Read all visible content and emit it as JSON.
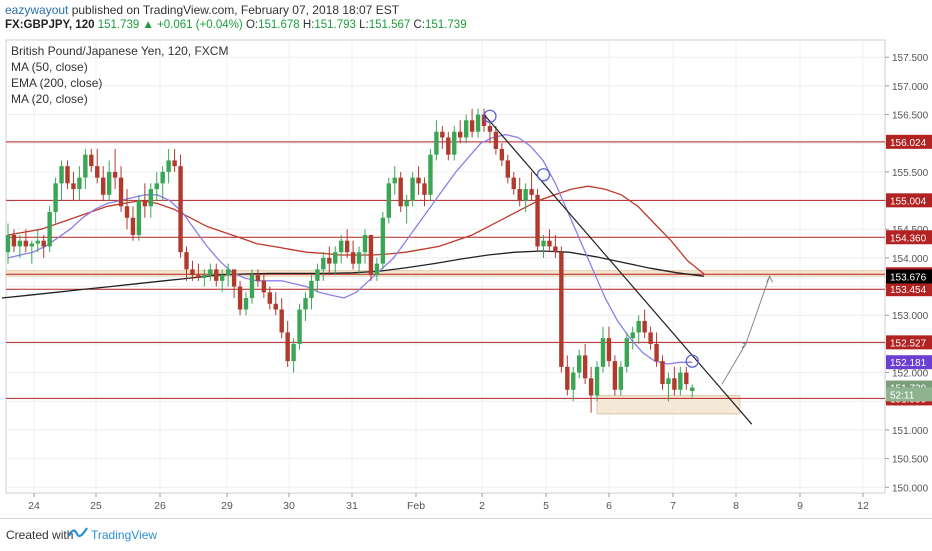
{
  "header": {
    "user": "eazywayout",
    "published_text": " published on TradingView.com, February 07, 2018 18:07 EST",
    "symbol": "FX:GBPJPY, 120",
    "last": "151.739",
    "change": "+0.061 (+0.04%)",
    "o_label": "O:",
    "o_value": "151.678",
    "h_label": "H:",
    "h_value": "151.793",
    "l_label": "L:",
    "l_value": "151.567",
    "c_label": "C:",
    "c_value": "151.739"
  },
  "legend": {
    "title": "British Pound/Japanese Yen, 120, FXCM",
    "items": [
      "MA (50, close)",
      "EMA (200, close)",
      "MA (20, close)"
    ]
  },
  "footer": {
    "created_with": "Created with",
    "brand": "TradingView"
  },
  "chart_data": {
    "type": "candlestick",
    "y_axis": {
      "min": 149.9,
      "max": 157.8,
      "side": "right",
      "ticks": [
        150.0,
        150.5,
        151.0,
        151.5,
        152.0,
        152.5,
        153.0,
        153.5,
        154.0,
        154.5,
        155.0,
        155.5,
        156.0,
        156.5,
        157.0,
        157.5
      ],
      "tick_labels": [
        "150.000",
        "150.500",
        "151.000",
        "151.500",
        "152.000",
        "152.500",
        "153.000",
        "153.500",
        "154.000",
        "154.500",
        "155.000",
        "155.500",
        "156.000",
        "156.500",
        "157.000",
        "157.500"
      ]
    },
    "x_axis": {
      "labels": [
        "24",
        "25",
        "26",
        "29",
        "30",
        "31",
        "Feb",
        "2",
        "5",
        "6",
        "7",
        "8",
        "9",
        "12"
      ]
    },
    "grid": true,
    "horizontal_levels": [
      {
        "value": 156.024,
        "label": "156.024",
        "color": "#b22222"
      },
      {
        "value": 155.004,
        "label": "155.004",
        "color": "#b22222"
      },
      {
        "value": 154.36,
        "label": "154.360",
        "color": "#b22222"
      },
      {
        "value": 153.715,
        "label": "153.715",
        "color": "#b22222"
      },
      {
        "value": 153.454,
        "label": "153.454",
        "color": "#b22222"
      },
      {
        "value": 152.527,
        "label": "152.527",
        "color": "#b22222"
      },
      {
        "value": 151.55,
        "label": "151.550",
        "color": "#b22222"
      }
    ],
    "price_tags": [
      {
        "value": 153.676,
        "label": "153.676",
        "color": "#000000"
      },
      {
        "value": 152.181,
        "label": "152.181",
        "color": "#6a3fd1"
      },
      {
        "value": 151.739,
        "label": "151.739",
        "color": "#7a9e7a"
      },
      {
        "value": 151.62,
        "label": "52:11",
        "color": "#8fb38f"
      }
    ],
    "zones": [
      {
        "y1": 153.68,
        "y2": 153.78
      },
      {
        "y1": 151.28,
        "y2": 151.6
      }
    ],
    "ohlc": [
      [
        154.1,
        154.6,
        153.9,
        154.4
      ],
      [
        154.4,
        154.5,
        154.1,
        154.2
      ],
      [
        154.2,
        154.4,
        154.0,
        154.3
      ],
      [
        154.3,
        154.5,
        154.1,
        154.2
      ],
      [
        154.2,
        154.3,
        153.9,
        154.25
      ],
      [
        154.25,
        154.5,
        154.1,
        154.3
      ],
      [
        154.3,
        154.4,
        154.0,
        154.2
      ],
      [
        154.2,
        154.9,
        154.1,
        154.8
      ],
      [
        154.8,
        155.4,
        154.6,
        155.3
      ],
      [
        155.3,
        155.7,
        155.0,
        155.6
      ],
      [
        155.6,
        155.7,
        155.2,
        155.3
      ],
      [
        155.3,
        155.5,
        155.0,
        155.2
      ],
      [
        155.2,
        155.6,
        155.0,
        155.4
      ],
      [
        155.4,
        155.9,
        155.2,
        155.8
      ],
      [
        155.8,
        155.9,
        155.5,
        155.6
      ],
      [
        155.6,
        155.9,
        155.3,
        155.4
      ],
      [
        155.4,
        155.6,
        155.0,
        155.1
      ],
      [
        155.1,
        155.7,
        155.0,
        155.5
      ],
      [
        155.5,
        155.9,
        155.2,
        155.4
      ],
      [
        155.4,
        155.6,
        154.8,
        154.9
      ],
      [
        154.9,
        155.2,
        154.5,
        154.7
      ],
      [
        154.7,
        154.9,
        154.3,
        154.4
      ],
      [
        154.4,
        155.1,
        154.3,
        155.0
      ],
      [
        155.0,
        155.3,
        154.7,
        154.9
      ],
      [
        154.9,
        155.3,
        154.7,
        155.2
      ],
      [
        155.2,
        155.5,
        155.0,
        155.3
      ],
      [
        155.3,
        155.6,
        155.0,
        155.5
      ],
      [
        155.5,
        155.9,
        155.3,
        155.7
      ],
      [
        155.7,
        155.9,
        155.5,
        155.6
      ],
      [
        155.6,
        155.8,
        154.0,
        154.1
      ],
      [
        154.1,
        154.2,
        153.6,
        153.8
      ],
      [
        153.8,
        153.95,
        153.6,
        153.7
      ],
      [
        153.7,
        153.9,
        153.6,
        153.65
      ],
      [
        153.65,
        153.8,
        153.5,
        153.7
      ],
      [
        153.7,
        153.9,
        153.6,
        153.8
      ],
      [
        153.8,
        153.9,
        153.5,
        153.6
      ],
      [
        153.6,
        153.8,
        153.4,
        153.7
      ],
      [
        153.7,
        153.9,
        153.5,
        153.8
      ],
      [
        153.8,
        153.8,
        153.3,
        153.5
      ],
      [
        153.5,
        153.6,
        153.0,
        153.1
      ],
      [
        153.1,
        153.4,
        153.0,
        153.3
      ],
      [
        153.3,
        153.8,
        153.2,
        153.7
      ],
      [
        153.7,
        153.8,
        153.5,
        153.6
      ],
      [
        153.6,
        153.7,
        153.3,
        153.4
      ],
      [
        153.4,
        153.5,
        153.1,
        153.2
      ],
      [
        153.2,
        153.4,
        153.0,
        153.1
      ],
      [
        153.1,
        153.3,
        152.6,
        152.7
      ],
      [
        152.7,
        152.9,
        152.1,
        152.2
      ],
      [
        152.2,
        152.6,
        152.0,
        152.5
      ],
      [
        152.5,
        153.2,
        152.4,
        153.1
      ],
      [
        153.1,
        153.4,
        152.9,
        153.3
      ],
      [
        153.3,
        153.7,
        153.1,
        153.6
      ],
      [
        153.6,
        153.9,
        153.4,
        153.8
      ],
      [
        153.8,
        154.1,
        153.6,
        154.0
      ],
      [
        154.0,
        154.2,
        153.7,
        153.9
      ],
      [
        153.9,
        154.2,
        153.7,
        154.1
      ],
      [
        154.1,
        154.4,
        153.9,
        154.3
      ],
      [
        154.3,
        154.5,
        154.0,
        154.1
      ],
      [
        154.1,
        154.3,
        153.8,
        153.9
      ],
      [
        153.9,
        154.2,
        153.7,
        154.1
      ],
      [
        154.1,
        154.5,
        153.9,
        154.4
      ],
      [
        154.4,
        154.4,
        153.6,
        153.7
      ],
      [
        153.7,
        154.0,
        153.6,
        153.9
      ],
      [
        153.9,
        154.8,
        153.8,
        154.7
      ],
      [
        154.7,
        155.4,
        154.6,
        155.3
      ],
      [
        155.3,
        155.6,
        155.1,
        155.4
      ],
      [
        155.4,
        155.5,
        154.8,
        154.9
      ],
      [
        154.9,
        155.1,
        154.6,
        155.0
      ],
      [
        155.0,
        155.5,
        154.9,
        155.4
      ],
      [
        155.4,
        155.6,
        155.1,
        155.3
      ],
      [
        155.3,
        155.4,
        154.9,
        155.1
      ],
      [
        155.1,
        155.9,
        155.0,
        155.8
      ],
      [
        155.8,
        156.4,
        155.7,
        156.2
      ],
      [
        156.2,
        156.3,
        155.9,
        156.1
      ],
      [
        156.1,
        156.2,
        155.7,
        155.8
      ],
      [
        155.8,
        156.3,
        155.7,
        156.2
      ],
      [
        156.2,
        156.4,
        156.0,
        156.1
      ],
      [
        156.1,
        156.5,
        156.0,
        156.4
      ],
      [
        156.4,
        156.6,
        156.1,
        156.2
      ],
      [
        156.2,
        156.6,
        156.1,
        156.5
      ],
      [
        156.5,
        156.6,
        156.2,
        156.3
      ],
      [
        156.3,
        156.4,
        156.0,
        156.2
      ],
      [
        156.2,
        156.3,
        155.8,
        155.9
      ],
      [
        155.9,
        156.0,
        155.6,
        155.7
      ],
      [
        155.7,
        155.8,
        155.3,
        155.4
      ],
      [
        155.4,
        155.5,
        155.1,
        155.2
      ],
      [
        155.2,
        155.4,
        154.9,
        155.0
      ],
      [
        155.0,
        155.3,
        154.8,
        155.2
      ],
      [
        155.2,
        155.5,
        155.0,
        155.1
      ],
      [
        155.1,
        155.2,
        154.1,
        154.2
      ],
      [
        154.2,
        154.4,
        154.0,
        154.3
      ],
      [
        154.3,
        154.5,
        154.1,
        154.2
      ],
      [
        154.2,
        154.4,
        154.0,
        154.1
      ],
      [
        154.1,
        154.2,
        152.0,
        152.1
      ],
      [
        152.1,
        152.3,
        151.6,
        151.7
      ],
      [
        151.7,
        152.1,
        151.5,
        152.0
      ],
      [
        152.0,
        152.4,
        151.9,
        152.3
      ],
      [
        152.3,
        152.5,
        151.8,
        151.9
      ],
      [
        151.9,
        152.1,
        151.3,
        151.6
      ],
      [
        151.6,
        152.2,
        151.5,
        152.1
      ],
      [
        152.1,
        152.8,
        152.0,
        152.6
      ],
      [
        152.6,
        152.8,
        152.1,
        152.2
      ],
      [
        152.2,
        152.3,
        151.6,
        151.7
      ],
      [
        151.7,
        152.2,
        151.6,
        152.1
      ],
      [
        152.1,
        152.7,
        152.0,
        152.6
      ],
      [
        152.6,
        152.8,
        152.4,
        152.7
      ],
      [
        152.7,
        153.0,
        152.5,
        152.9
      ],
      [
        152.9,
        153.1,
        152.6,
        152.7
      ],
      [
        152.7,
        152.8,
        152.4,
        152.5
      ],
      [
        152.5,
        152.7,
        152.1,
        152.2
      ],
      [
        152.2,
        152.3,
        151.7,
        151.8
      ],
      [
        151.8,
        152.0,
        151.5,
        151.9
      ],
      [
        151.9,
        152.1,
        151.6,
        151.7
      ],
      [
        151.7,
        152.1,
        151.6,
        152.0
      ],
      [
        152.0,
        152.1,
        151.7,
        151.8
      ],
      [
        151.678,
        151.793,
        151.567,
        151.739
      ]
    ],
    "ma20": [
      154.0,
      154.05,
      154.1,
      154.2,
      154.35,
      154.5,
      154.7,
      154.85,
      154.95,
      155.0,
      155.05,
      155.1,
      155.1,
      155.0,
      154.8,
      154.5,
      154.2,
      153.95,
      153.75,
      153.65,
      153.6,
      153.6,
      153.6,
      153.55,
      153.5,
      153.4,
      153.35,
      153.3,
      153.4,
      153.6,
      153.8,
      154.0,
      154.3,
      154.6,
      154.9,
      155.2,
      155.5,
      155.75,
      156.0,
      156.1,
      156.15,
      156.1,
      155.95,
      155.7,
      155.3,
      154.8,
      154.3,
      153.8,
      153.3,
      152.9,
      152.6,
      152.35,
      152.2,
      152.15,
      152.18,
      152.18
    ],
    "ma50": [
      154.4,
      154.45,
      154.5,
      154.6,
      154.7,
      154.8,
      154.9,
      154.95,
      155.0,
      154.95,
      154.85,
      154.7,
      154.55,
      154.45,
      154.35,
      154.25,
      154.2,
      154.15,
      154.1,
      154.08,
      154.05,
      154.05,
      154.05,
      154.07,
      154.1,
      154.15,
      154.2,
      154.3,
      154.4,
      154.55,
      154.7,
      154.85,
      155.0,
      155.1,
      155.2,
      155.25,
      155.2,
      155.1,
      154.9,
      154.6,
      154.3,
      153.95,
      153.72
    ],
    "ema200": [
      153.3,
      153.35,
      153.4,
      153.45,
      153.5,
      153.55,
      153.6,
      153.65,
      153.7,
      153.72,
      153.73,
      153.73,
      153.73,
      153.74,
      153.77,
      153.83,
      153.9,
      153.98,
      154.05,
      154.1,
      154.12,
      154.1,
      154.02,
      153.92,
      153.82,
      153.74,
      153.68
    ],
    "trendline": {
      "from": [
        80,
        156.5
      ],
      "to": [
        125,
        151.1
      ]
    },
    "projection": [
      [
        120,
        151.8
      ],
      [
        124,
        152.5
      ],
      [
        128,
        153.68
      ]
    ],
    "circles": [
      [
        81,
        156.47
      ],
      [
        90,
        155.45
      ],
      [
        115,
        152.2
      ]
    ]
  }
}
